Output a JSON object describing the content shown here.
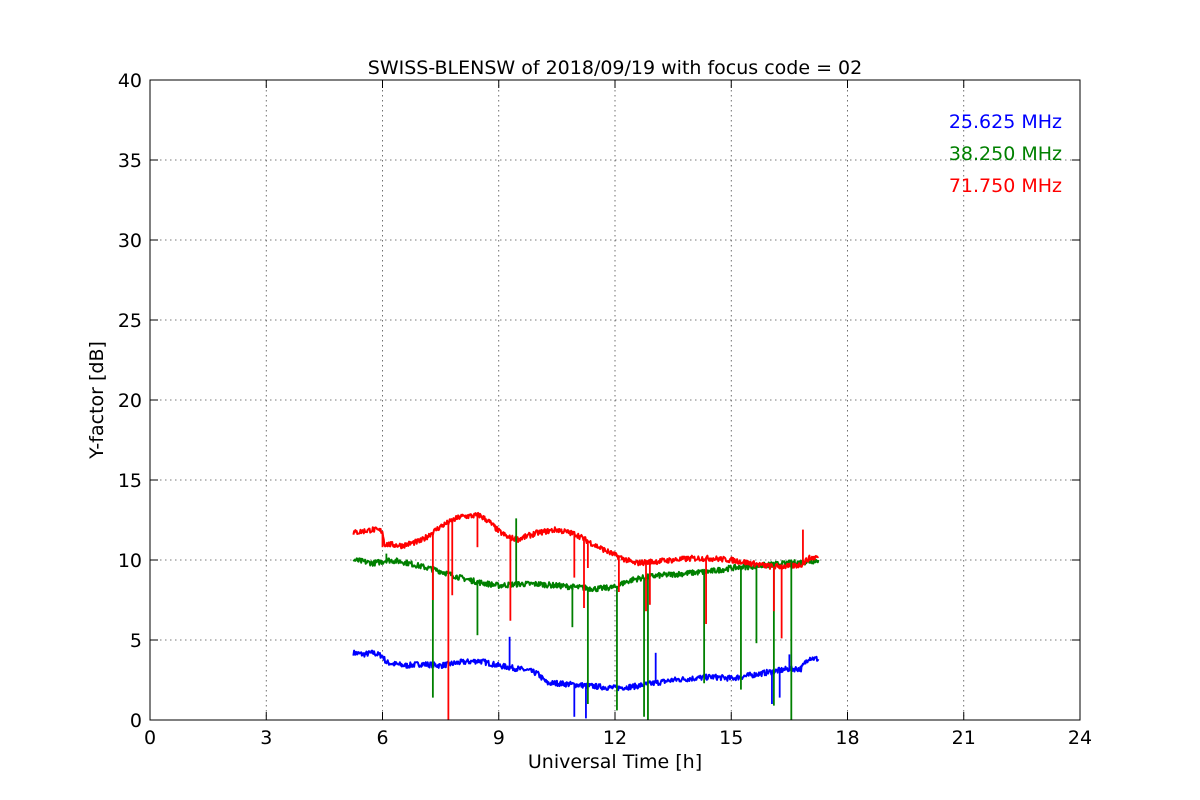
{
  "chart_data": {
    "type": "line",
    "title": "SWISS-BLENSW of 2018/09/19 with focus code = 02",
    "xlabel": "Universal Time [h]",
    "ylabel": "Y-factor [dB]",
    "xlim": [
      0,
      24
    ],
    "ylim": [
      0,
      40
    ],
    "xticks": [
      0,
      3,
      6,
      9,
      12,
      15,
      18,
      21,
      24
    ],
    "yticks": [
      0,
      5,
      10,
      15,
      20,
      25,
      30,
      35,
      40
    ],
    "grid": true,
    "legend_position": "top-right",
    "series": [
      {
        "name": "25.625 MHz",
        "color": "#0000ff",
        "x": [
          5.25,
          5.5,
          5.75,
          6.0,
          6.1,
          6.3,
          6.6,
          7.0,
          7.5,
          8.0,
          8.5,
          9.0,
          9.25,
          9.5,
          9.75,
          10.0,
          10.25,
          10.5,
          11.0,
          11.5,
          12.0,
          12.5,
          13.0,
          13.5,
          14.0,
          14.5,
          15.0,
          15.5,
          16.0,
          16.5,
          16.8,
          17.0,
          17.25
        ],
        "y": [
          4.2,
          4.1,
          4.2,
          4.0,
          3.6,
          3.5,
          3.4,
          3.5,
          3.4,
          3.6,
          3.7,
          3.4,
          3.3,
          3.2,
          3.1,
          2.9,
          2.3,
          2.3,
          2.2,
          2.1,
          2.0,
          2.1,
          2.3,
          2.5,
          2.6,
          2.7,
          2.6,
          2.8,
          3.0,
          3.2,
          3.2,
          3.9,
          3.8
        ]
      },
      {
        "name": "38.250 MHz",
        "color": "#008000",
        "x": [
          5.25,
          5.5,
          5.75,
          6.0,
          6.1,
          6.5,
          7.0,
          7.5,
          8.0,
          8.5,
          9.0,
          9.5,
          10.0,
          10.5,
          11.0,
          11.5,
          12.0,
          12.25,
          12.5,
          12.75,
          13.0,
          13.5,
          14.0,
          14.5,
          15.0,
          15.5,
          16.0,
          16.5,
          17.0,
          17.25
        ],
        "y": [
          10.0,
          9.9,
          9.8,
          9.9,
          10.0,
          9.9,
          9.6,
          9.3,
          8.9,
          8.6,
          8.4,
          8.5,
          8.5,
          8.4,
          8.3,
          8.2,
          8.3,
          8.6,
          8.8,
          8.9,
          9.0,
          9.1,
          9.2,
          9.3,
          9.5,
          9.6,
          9.7,
          9.8,
          9.9,
          10.0
        ]
      },
      {
        "name": "71.750 MHz",
        "color": "#ff0000",
        "x": [
          5.25,
          5.5,
          5.75,
          6.0,
          6.05,
          6.5,
          7.0,
          7.5,
          8.0,
          8.5,
          8.75,
          9.0,
          9.25,
          9.5,
          10.0,
          10.5,
          11.0,
          11.5,
          12.0,
          12.5,
          13.0,
          13.5,
          14.0,
          14.5,
          15.0,
          15.5,
          16.0,
          16.5,
          16.8,
          17.0,
          17.25
        ],
        "y": [
          11.7,
          11.8,
          11.9,
          11.8,
          11.0,
          10.9,
          11.2,
          12.1,
          12.7,
          12.8,
          12.4,
          11.8,
          11.4,
          11.3,
          11.7,
          11.9,
          11.6,
          10.9,
          10.3,
          9.8,
          9.9,
          10.0,
          10.1,
          10.1,
          10.0,
          9.8,
          9.6,
          9.6,
          9.7,
          10.1,
          10.2
        ]
      }
    ],
    "spikes": [
      {
        "series": 0,
        "x": 9.28,
        "y": 5.2
      },
      {
        "series": 0,
        "x": 10.95,
        "y": 0.2
      },
      {
        "series": 0,
        "x": 11.25,
        "y": 0.1
      },
      {
        "series": 0,
        "x": 13.05,
        "y": 4.2
      },
      {
        "series": 0,
        "x": 16.05,
        "y": 1.0
      },
      {
        "series": 0,
        "x": 16.25,
        "y": 1.4
      },
      {
        "series": 0,
        "x": 16.5,
        "y": 4.1
      },
      {
        "series": 1,
        "x": 6.1,
        "y": 10.4
      },
      {
        "series": 1,
        "x": 7.3,
        "y": 1.4
      },
      {
        "series": 1,
        "x": 8.45,
        "y": 5.3
      },
      {
        "series": 1,
        "x": 9.45,
        "y": 12.6
      },
      {
        "series": 1,
        "x": 10.9,
        "y": 5.8
      },
      {
        "series": 1,
        "x": 11.3,
        "y": 1.0
      },
      {
        "series": 1,
        "x": 12.05,
        "y": 0.6
      },
      {
        "series": 1,
        "x": 12.75,
        "y": 0.2
      },
      {
        "series": 1,
        "x": 12.85,
        "y": 0.0
      },
      {
        "series": 1,
        "x": 14.3,
        "y": 2.3
      },
      {
        "series": 1,
        "x": 15.25,
        "y": 1.9
      },
      {
        "series": 1,
        "x": 15.65,
        "y": 4.8
      },
      {
        "series": 1,
        "x": 16.1,
        "y": 0.9
      },
      {
        "series": 1,
        "x": 16.55,
        "y": 0.0
      },
      {
        "series": 2,
        "x": 6.0,
        "y": 10.8
      },
      {
        "series": 2,
        "x": 7.3,
        "y": 7.5
      },
      {
        "series": 2,
        "x": 7.7,
        "y": 0.0
      },
      {
        "series": 2,
        "x": 7.8,
        "y": 7.8
      },
      {
        "series": 2,
        "x": 8.45,
        "y": 10.8
      },
      {
        "series": 2,
        "x": 9.3,
        "y": 6.2
      },
      {
        "series": 2,
        "x": 10.95,
        "y": 8.9
      },
      {
        "series": 2,
        "x": 11.2,
        "y": 7.0
      },
      {
        "series": 2,
        "x": 11.3,
        "y": 9.5
      },
      {
        "series": 2,
        "x": 12.1,
        "y": 8.0
      },
      {
        "series": 2,
        "x": 12.8,
        "y": 6.8
      },
      {
        "series": 2,
        "x": 12.9,
        "y": 7.2
      },
      {
        "series": 2,
        "x": 14.35,
        "y": 6.0
      },
      {
        "series": 2,
        "x": 16.1,
        "y": 6.8
      },
      {
        "series": 2,
        "x": 16.3,
        "y": 5.1
      },
      {
        "series": 2,
        "x": 16.85,
        "y": 11.9
      }
    ]
  }
}
